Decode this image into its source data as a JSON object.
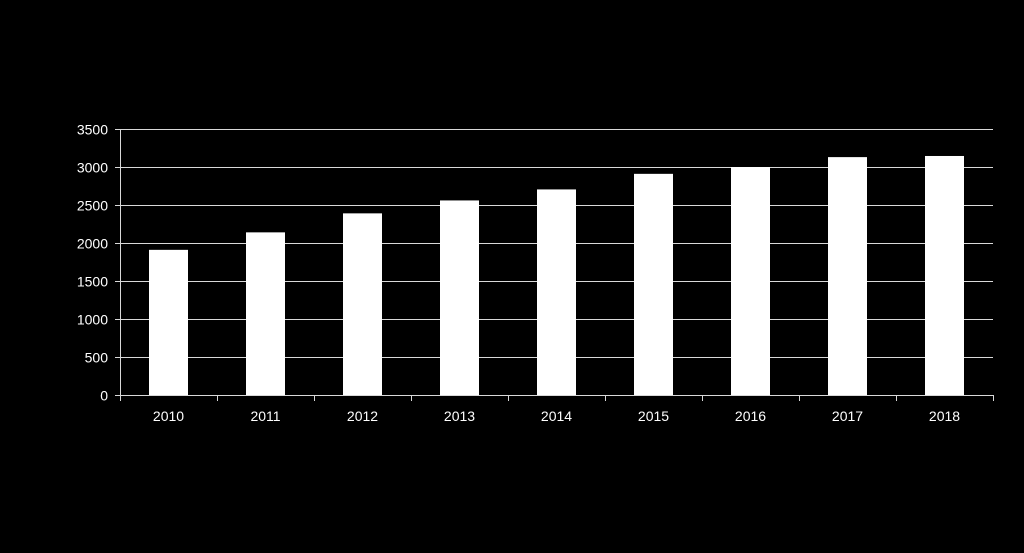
{
  "chart_data": {
    "type": "bar",
    "categories": [
      "2010",
      "2011",
      "2012",
      "2013",
      "2014",
      "2015",
      "2016",
      "2017",
      "2018"
    ],
    "values": [
      1910,
      2140,
      2390,
      2560,
      2705,
      2910,
      3000,
      3130,
      3145
    ],
    "title": "",
    "xlabel": "",
    "ylabel": "",
    "ylim": [
      0,
      3500
    ],
    "yticks": [
      0,
      500,
      1000,
      1500,
      2000,
      2500,
      3000,
      3500
    ],
    "grid": "horizontal",
    "legend": "none",
    "colors": {
      "background": "#000000",
      "bar": "#ffffff",
      "grid": "#d9d9d9",
      "axis": "#d9d9d9",
      "text": "#ffffff"
    }
  }
}
